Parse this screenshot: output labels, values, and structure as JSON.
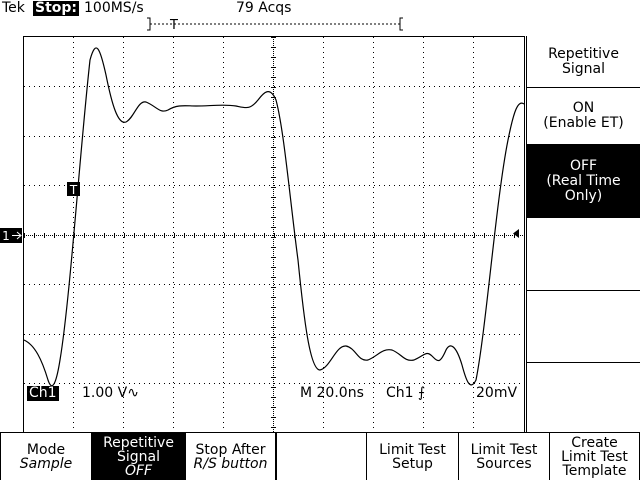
{
  "header": {
    "brand": "Tek",
    "state": "Stop:",
    "sample_rate": "100MS/s",
    "acquisitions": "79 Acqs",
    "trigger_marker": "T"
  },
  "markers": {
    "trigger_point": "T",
    "channel": "1"
  },
  "side_menu": {
    "title": "Repetitive Signal",
    "items": [
      {
        "label": "ON",
        "detail": "(Enable ET)"
      },
      {
        "label": "OFF",
        "detail": "(Real Time Only)"
      }
    ]
  },
  "readout": {
    "channel": "Ch1",
    "scale": "1.00 V∿",
    "timebase": "M 20.0ns",
    "trigger": "Ch1 ⨍",
    "level": "20mV"
  },
  "bottom_menu": [
    {
      "label": "Mode",
      "value": "Sample"
    },
    {
      "label": "Repetitive Signal",
      "value": "OFF"
    },
    {
      "label": "Stop After",
      "value": "R/S button"
    },
    {
      "label": "Limit Test Setup"
    },
    {
      "label": "Limit Test Sources"
    },
    {
      "label": "Create Limit Test Template"
    }
  ]
}
